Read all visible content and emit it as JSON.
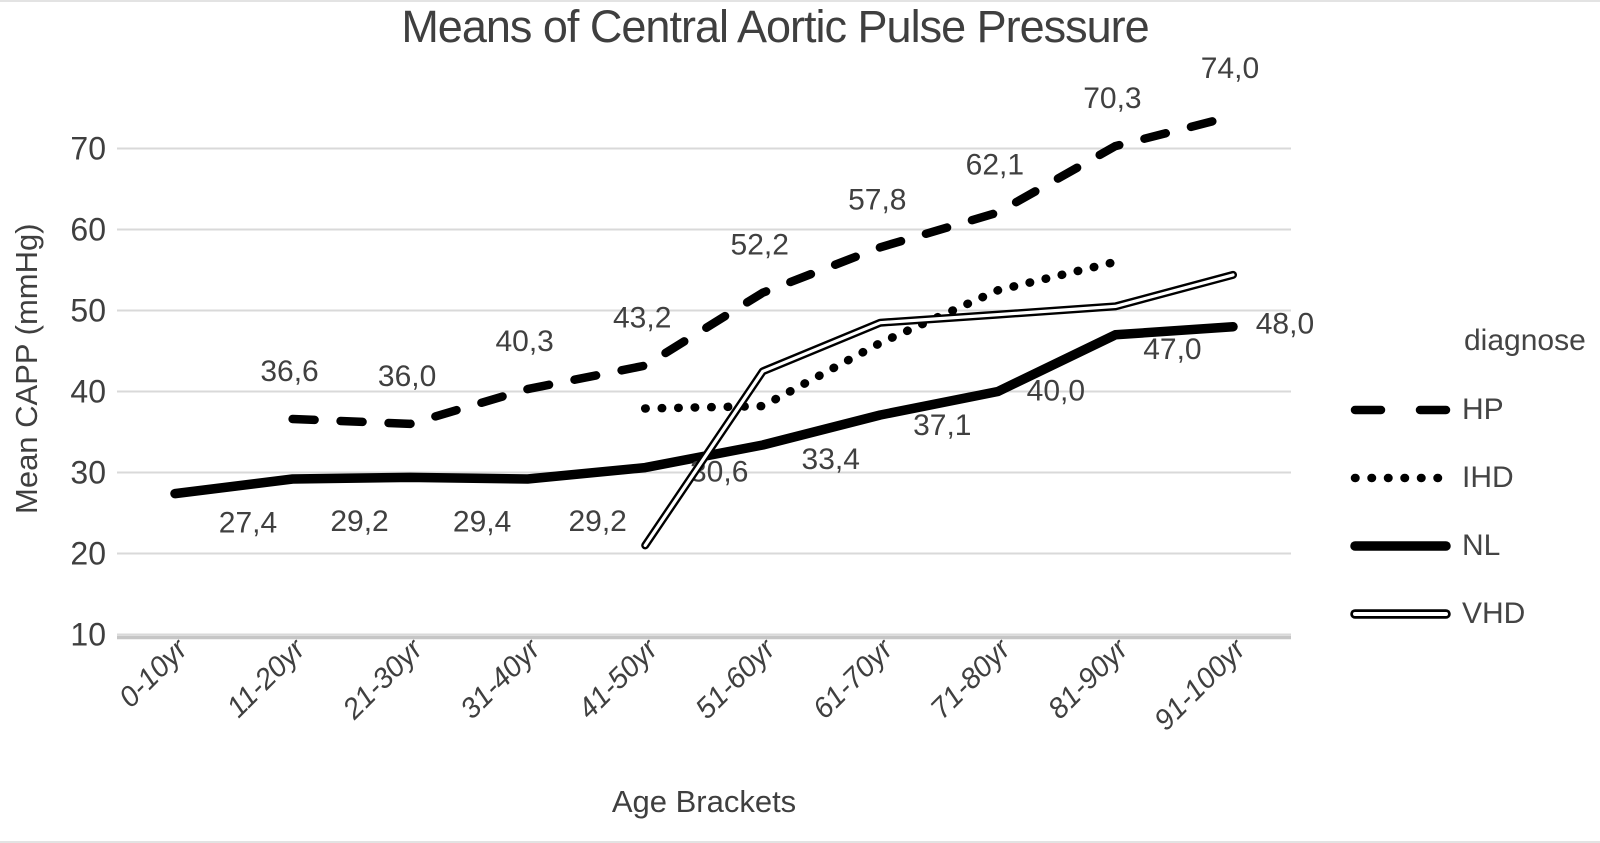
{
  "title": "Means of Central Aortic Pulse Pressure",
  "y_axis": {
    "title": "Mean CAPP (mmHg)",
    "ticks": [
      10,
      20,
      30,
      40,
      50,
      60,
      70
    ]
  },
  "x_axis": {
    "title": "Age Brackets"
  },
  "legend": {
    "title": "diagnose",
    "entries": [
      {
        "label": "HP",
        "style": "dashed"
      },
      {
        "label": "IHD",
        "style": "dotted"
      },
      {
        "label": "NL",
        "style": "solid"
      },
      {
        "label": "VHD",
        "style": "double"
      }
    ]
  },
  "colors": {
    "series": "#000000",
    "text": "#3f3f3f",
    "label_text": "#404040",
    "grid": "#d9d9d9",
    "axis_line": "#c6c6c6"
  },
  "chart_data": {
    "type": "line",
    "title": "Means of Central Aortic Pulse Pressure",
    "xlabel": "Age Brackets",
    "ylabel": "Mean CAPP (mmHg)",
    "ylim": [
      10,
      76
    ],
    "yticks": [
      10,
      20,
      30,
      40,
      50,
      60,
      70
    ],
    "grid": true,
    "legend_position": "right",
    "categories": [
      "0-10yr",
      "11-20yr",
      "21-30yr",
      "31-40yr",
      "41-50yr",
      "51-60yr",
      "61-70yr",
      "71-80yr",
      "81-90yr",
      "91-100yr"
    ],
    "series": [
      {
        "name": "HP",
        "style": "dashed",
        "values": [
          null,
          36.6,
          36.0,
          40.3,
          43.2,
          52.2,
          57.8,
          62.1,
          70.3,
          74.0
        ],
        "labels": [
          null,
          "36,6",
          "36,0",
          "40,3",
          "43,2",
          "52,2",
          "57,8",
          "62,1",
          "70,3",
          "74,0"
        ]
      },
      {
        "name": "IHD",
        "style": "dotted",
        "values": [
          null,
          null,
          null,
          null,
          37.9,
          38.2,
          46.0,
          52.5,
          56.0,
          null
        ],
        "labels": [
          null,
          null,
          null,
          null,
          null,
          null,
          null,
          null,
          null,
          null
        ]
      },
      {
        "name": "NL",
        "style": "solid",
        "values": [
          27.4,
          29.2,
          29.4,
          29.2,
          30.6,
          33.4,
          37.1,
          40.0,
          47.0,
          48.0
        ],
        "labels": [
          "27,4",
          "29,2",
          "29,4",
          "29,2",
          "30,6",
          "33,4",
          "37,1",
          "40,0",
          "47,0",
          "48,0"
        ]
      },
      {
        "name": "VHD",
        "style": "double",
        "values": [
          null,
          null,
          null,
          null,
          21.0,
          42.5,
          48.5,
          49.5,
          50.5,
          54.4
        ],
        "labels": [
          null,
          null,
          null,
          null,
          null,
          null,
          null,
          null,
          null,
          null
        ]
      }
    ]
  }
}
